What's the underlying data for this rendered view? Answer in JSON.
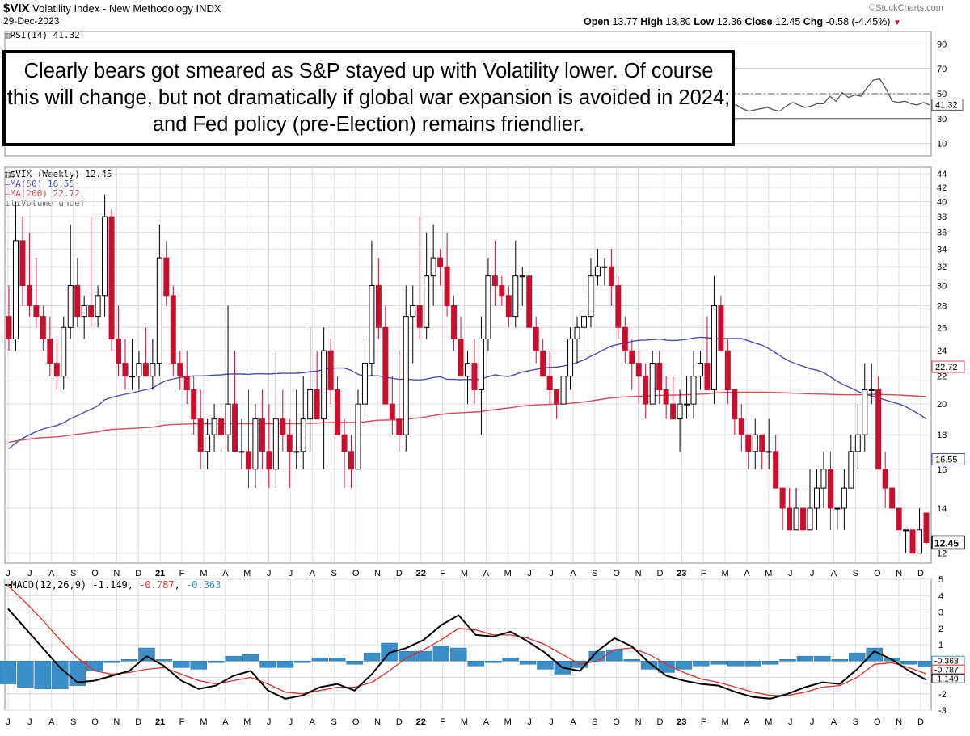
{
  "header": {
    "symbol": "$VIX",
    "name": "Volatility Index - New Methodology",
    "exchange": "INDX",
    "date": "29-Dec-2023",
    "ohlc": {
      "open_label": "Open",
      "open": "13.77",
      "high_label": "High",
      "high": "13.80",
      "low_label": "Low",
      "low": "12.36",
      "close_label": "Close",
      "close": "12.45",
      "chg_label": "Chg",
      "chg": "-0.58 (-4.45%)"
    },
    "chg_arrow": "▼",
    "watermark": "©StockCharts.com"
  },
  "callout": {
    "text": "Clearly bears got smeared as S&P stayed up with Volatility lower. Of course this will change, but not dramatically if global war expansion is avoided in 2024; and Fed policy (pre-Election) remains friendlier."
  },
  "legends": {
    "rsi": "RSI(14) 41.32",
    "price": "$VIX (Weekly) 12.45",
    "ma50": "MA(50) 16.55",
    "ma200": "MA(200) 22.72",
    "volume": "Volume undef",
    "macd_prefix": "MACD(12,26,9)",
    "macd_val": "-1.149",
    "signal_val": "-0.787",
    "hist_val": "-0.363"
  },
  "colors": {
    "up": "#000000",
    "down": "#c8102e",
    "ma50": "#4a4fb0",
    "ma200": "#d84a55",
    "macd": "#000000",
    "signal": "#e0302a",
    "hist": "#3a8fc8",
    "grid": "#dcdcdc",
    "chg": "#c8102e"
  },
  "chart_data": [
    {
      "type": "line",
      "panel": "RSI(14)",
      "ylim": [
        0,
        100
      ],
      "yticks": [
        10,
        30,
        50,
        70,
        90
      ],
      "reference_lines": [
        30,
        50,
        70
      ],
      "last_label": "41.32",
      "series": [
        {
          "name": "RSI(14)",
          "values": [
            45,
            44,
            42,
            40,
            41,
            38,
            36,
            37,
            38,
            39,
            37,
            36,
            40,
            43,
            41,
            39,
            40,
            42,
            42,
            48,
            44,
            51,
            47,
            49,
            48,
            55,
            61,
            62,
            54,
            44,
            43,
            44,
            42,
            41,
            43,
            41
          ]
        }
      ]
    },
    {
      "type": "candlestick",
      "panel": "$VIX (Weekly)",
      "y_scale": "log",
      "ylim": [
        11.6,
        45
      ],
      "yticks": [
        12,
        14,
        16,
        18,
        20,
        22,
        24,
        26,
        28,
        30,
        32,
        34,
        36,
        38,
        40,
        42,
        44
      ],
      "x_tick_labels": [
        "J",
        "J",
        "A",
        "S",
        "O",
        "N",
        "D",
        "21",
        "F",
        "M",
        "A",
        "M",
        "J",
        "J",
        "A",
        "S",
        "O",
        "N",
        "D",
        "22",
        "F",
        "M",
        "A",
        "M",
        "J",
        "J",
        "A",
        "S",
        "O",
        "N",
        "D",
        "23",
        "F",
        "M",
        "A",
        "M",
        "J",
        "J",
        "A",
        "S",
        "O",
        "N",
        "D"
      ],
      "series": [
        {
          "name": "MA(50)",
          "last": 16.55
        },
        {
          "name": "MA(200)",
          "last": 22.72
        }
      ],
      "candles": [
        {
          "o": 27,
          "h": 30,
          "l": 24,
          "c": 25
        },
        {
          "o": 25,
          "h": 40,
          "l": 24,
          "c": 35
        },
        {
          "o": 35,
          "h": 38,
          "l": 28,
          "c": 30
        },
        {
          "o": 30,
          "h": 36,
          "l": 27,
          "c": 28
        },
        {
          "o": 28,
          "h": 33,
          "l": 26,
          "c": 27
        },
        {
          "o": 27,
          "h": 28,
          "l": 24,
          "c": 25
        },
        {
          "o": 25,
          "h": 27,
          "l": 22,
          "c": 23
        },
        {
          "o": 23,
          "h": 25,
          "l": 21,
          "c": 22
        },
        {
          "o": 22,
          "h": 27,
          "l": 21,
          "c": 26
        },
        {
          "o": 26,
          "h": 37,
          "l": 25,
          "c": 30
        },
        {
          "o": 30,
          "h": 33,
          "l": 26,
          "c": 27
        },
        {
          "o": 27,
          "h": 29,
          "l": 25,
          "c": 28
        },
        {
          "o": 28,
          "h": 38,
          "l": 26,
          "c": 27
        },
        {
          "o": 27,
          "h": 30,
          "l": 26,
          "c": 29
        },
        {
          "o": 29,
          "h": 41,
          "l": 27,
          "c": 38
        },
        {
          "o": 38,
          "h": 39,
          "l": 24,
          "c": 25
        },
        {
          "o": 25,
          "h": 28,
          "l": 22,
          "c": 23
        },
        {
          "o": 23,
          "h": 25,
          "l": 21,
          "c": 22
        },
        {
          "o": 22,
          "h": 25,
          "l": 21,
          "c": 22
        },
        {
          "o": 22,
          "h": 24,
          "l": 21,
          "c": 23
        },
        {
          "o": 23,
          "h": 26,
          "l": 22,
          "c": 22
        },
        {
          "o": 22,
          "h": 25,
          "l": 21,
          "c": 23
        },
        {
          "o": 23,
          "h": 37,
          "l": 22,
          "c": 33
        },
        {
          "o": 33,
          "h": 35,
          "l": 28,
          "c": 29
        },
        {
          "o": 29,
          "h": 30,
          "l": 22,
          "c": 23
        },
        {
          "o": 23,
          "h": 24,
          "l": 21,
          "c": 22
        },
        {
          "o": 22,
          "h": 24,
          "l": 20,
          "c": 21
        },
        {
          "o": 21,
          "h": 22,
          "l": 18,
          "c": 19
        },
        {
          "o": 19,
          "h": 21,
          "l": 16,
          "c": 17
        },
        {
          "o": 17,
          "h": 19,
          "l": 16,
          "c": 18
        },
        {
          "o": 18,
          "h": 20,
          "l": 17,
          "c": 19
        },
        {
          "o": 19,
          "h": 22,
          "l": 17,
          "c": 18
        },
        {
          "o": 18,
          "h": 28,
          "l": 17,
          "c": 20
        },
        {
          "o": 20,
          "h": 24,
          "l": 17,
          "c": 17
        },
        {
          "o": 17,
          "h": 19,
          "l": 16,
          "c": 17
        },
        {
          "o": 17,
          "h": 21,
          "l": 15,
          "c": 16
        },
        {
          "o": 16,
          "h": 20,
          "l": 15,
          "c": 19
        },
        {
          "o": 19,
          "h": 21,
          "l": 16,
          "c": 17
        },
        {
          "o": 17,
          "h": 20,
          "l": 15,
          "c": 16
        },
        {
          "o": 16,
          "h": 24,
          "l": 15,
          "c": 19
        },
        {
          "o": 19,
          "h": 21,
          "l": 17,
          "c": 18
        },
        {
          "o": 18,
          "h": 19,
          "l": 15,
          "c": 17
        },
        {
          "o": 17,
          "h": 21,
          "l": 16,
          "c": 17
        },
        {
          "o": 17,
          "h": 22,
          "l": 16,
          "c": 19
        },
        {
          "o": 19,
          "h": 26,
          "l": 17,
          "c": 21
        },
        {
          "o": 21,
          "h": 24,
          "l": 19,
          "c": 19
        },
        {
          "o": 19,
          "h": 26,
          "l": 16,
          "c": 24
        },
        {
          "o": 24,
          "h": 25,
          "l": 20,
          "c": 21
        },
        {
          "o": 21,
          "h": 22,
          "l": 18,
          "c": 18
        },
        {
          "o": 18,
          "h": 19,
          "l": 15,
          "c": 17
        },
        {
          "o": 17,
          "h": 18,
          "l": 15,
          "c": 16
        },
        {
          "o": 16,
          "h": 21,
          "l": 16,
          "c": 20
        },
        {
          "o": 20,
          "h": 25,
          "l": 19,
          "c": 23
        },
        {
          "o": 23,
          "h": 35,
          "l": 22,
          "c": 30
        },
        {
          "o": 30,
          "h": 33,
          "l": 25,
          "c": 26
        },
        {
          "o": 26,
          "h": 28,
          "l": 20,
          "c": 20
        },
        {
          "o": 20,
          "h": 22,
          "l": 18,
          "c": 19
        },
        {
          "o": 19,
          "h": 24,
          "l": 17,
          "c": 18
        },
        {
          "o": 18,
          "h": 30,
          "l": 17,
          "c": 27
        },
        {
          "o": 27,
          "h": 30,
          "l": 23,
          "c": 28
        },
        {
          "o": 28,
          "h": 38,
          "l": 25,
          "c": 26
        },
        {
          "o": 26,
          "h": 36,
          "l": 25,
          "c": 31
        },
        {
          "o": 31,
          "h": 37,
          "l": 28,
          "c": 33
        },
        {
          "o": 33,
          "h": 34,
          "l": 30,
          "c": 32
        },
        {
          "o": 32,
          "h": 36,
          "l": 27,
          "c": 28
        },
        {
          "o": 28,
          "h": 29,
          "l": 24,
          "c": 25
        },
        {
          "o": 25,
          "h": 27,
          "l": 22,
          "c": 22
        },
        {
          "o": 22,
          "h": 24,
          "l": 20,
          "c": 23
        },
        {
          "o": 23,
          "h": 25,
          "l": 20,
          "c": 21
        },
        {
          "o": 21,
          "h": 27,
          "l": 18,
          "c": 25
        },
        {
          "o": 25,
          "h": 33,
          "l": 24,
          "c": 31
        },
        {
          "o": 31,
          "h": 35,
          "l": 28,
          "c": 30
        },
        {
          "o": 30,
          "h": 31,
          "l": 28,
          "c": 29
        },
        {
          "o": 29,
          "h": 30,
          "l": 26,
          "c": 27
        },
        {
          "o": 27,
          "h": 35,
          "l": 26,
          "c": 31
        },
        {
          "o": 31,
          "h": 32,
          "l": 28,
          "c": 31
        },
        {
          "o": 31,
          "h": 31,
          "l": 26,
          "c": 26
        },
        {
          "o": 26,
          "h": 27,
          "l": 23,
          "c": 24
        },
        {
          "o": 24,
          "h": 25,
          "l": 22,
          "c": 22
        },
        {
          "o": 22,
          "h": 24,
          "l": 20,
          "c": 21
        },
        {
          "o": 21,
          "h": 21,
          "l": 19,
          "c": 20
        },
        {
          "o": 20,
          "h": 22,
          "l": 20,
          "c": 22
        },
        {
          "o": 22,
          "h": 26,
          "l": 21,
          "c": 25
        },
        {
          "o": 25,
          "h": 27,
          "l": 23,
          "c": 26
        },
        {
          "o": 26,
          "h": 29,
          "l": 24,
          "c": 27
        },
        {
          "o": 27,
          "h": 33,
          "l": 26,
          "c": 31
        },
        {
          "o": 31,
          "h": 34,
          "l": 30,
          "c": 32
        },
        {
          "o": 32,
          "h": 33,
          "l": 30,
          "c": 32
        },
        {
          "o": 32,
          "h": 34,
          "l": 28,
          "c": 30
        },
        {
          "o": 30,
          "h": 31,
          "l": 25,
          "c": 26
        },
        {
          "o": 26,
          "h": 27,
          "l": 23,
          "c": 24
        },
        {
          "o": 24,
          "h": 25,
          "l": 21,
          "c": 23
        },
        {
          "o": 23,
          "h": 24,
          "l": 20,
          "c": 22
        },
        {
          "o": 22,
          "h": 23,
          "l": 19,
          "c": 20
        },
        {
          "o": 20,
          "h": 24,
          "l": 20,
          "c": 23
        },
        {
          "o": 23,
          "h": 24,
          "l": 20,
          "c": 21
        },
        {
          "o": 21,
          "h": 22,
          "l": 19,
          "c": 20
        },
        {
          "o": 20,
          "h": 22,
          "l": 19,
          "c": 19
        },
        {
          "o": 19,
          "h": 21,
          "l": 17,
          "c": 20
        },
        {
          "o": 20,
          "h": 22,
          "l": 19,
          "c": 20
        },
        {
          "o": 20,
          "h": 24,
          "l": 19,
          "c": 22
        },
        {
          "o": 22,
          "h": 24,
          "l": 21,
          "c": 23
        },
        {
          "o": 23,
          "h": 27,
          "l": 21,
          "c": 21
        },
        {
          "o": 21,
          "h": 31,
          "l": 20,
          "c": 28
        },
        {
          "o": 28,
          "h": 29,
          "l": 24,
          "c": 24
        },
        {
          "o": 24,
          "h": 25,
          "l": 20,
          "c": 21
        },
        {
          "o": 21,
          "h": 21,
          "l": 18,
          "c": 19
        },
        {
          "o": 19,
          "h": 20,
          "l": 17,
          "c": 18
        },
        {
          "o": 18,
          "h": 18,
          "l": 16,
          "c": 17
        },
        {
          "o": 17,
          "h": 19,
          "l": 16,
          "c": 18
        },
        {
          "o": 18,
          "h": 18,
          "l": 16,
          "c": 17
        },
        {
          "o": 17,
          "h": 19,
          "l": 16,
          "c": 17
        },
        {
          "o": 17,
          "h": 18,
          "l": 15,
          "c": 15
        },
        {
          "o": 15,
          "h": 15,
          "l": 13,
          "c": 14
        },
        {
          "o": 14,
          "h": 15,
          "l": 13,
          "c": 13
        },
        {
          "o": 13,
          "h": 15,
          "l": 13,
          "c": 14
        },
        {
          "o": 14,
          "h": 15,
          "l": 13,
          "c": 13
        },
        {
          "o": 13,
          "h": 16,
          "l": 13,
          "c": 14
        },
        {
          "o": 14,
          "h": 16,
          "l": 13,
          "c": 15
        },
        {
          "o": 15,
          "h": 17,
          "l": 14,
          "c": 16
        },
        {
          "o": 16,
          "h": 17,
          "l": 13,
          "c": 14
        },
        {
          "o": 14,
          "h": 14,
          "l": 13,
          "c": 14
        },
        {
          "o": 14,
          "h": 16,
          "l": 13,
          "c": 15
        },
        {
          "o": 15,
          "h": 18,
          "l": 15,
          "c": 17
        },
        {
          "o": 17,
          "h": 20,
          "l": 16,
          "c": 18
        },
        {
          "o": 18,
          "h": 23,
          "l": 17,
          "c": 21
        },
        {
          "o": 21,
          "h": 23,
          "l": 20,
          "c": 21
        },
        {
          "o": 21,
          "h": 22,
          "l": 16,
          "c": 16
        },
        {
          "o": 16,
          "h": 17,
          "l": 14,
          "c": 15
        },
        {
          "o": 15,
          "h": 15,
          "l": 14,
          "c": 14
        },
        {
          "o": 14,
          "h": 14,
          "l": 13,
          "c": 13
        },
        {
          "o": 13,
          "h": 13,
          "l": 12,
          "c": 13
        },
        {
          "o": 13,
          "h": 13,
          "l": 12,
          "c": 12
        },
        {
          "o": 12,
          "h": 14,
          "l": 12,
          "c": 13
        },
        {
          "o": 13.77,
          "h": 13.8,
          "l": 12.36,
          "c": 12.45
        }
      ]
    },
    {
      "type": "bar",
      "panel": "MACD(12,26,9)",
      "ylim": [
        -3,
        5
      ],
      "yticks": [
        -3,
        -2,
        -1,
        0,
        1,
        2,
        3,
        4,
        5
      ],
      "series": [
        {
          "name": "MACD",
          "last": -1.149,
          "values": [
            3.2,
            2.0,
            0.8,
            -0.4,
            -1.3,
            -1.2,
            -0.9,
            -0.6,
            0.3,
            -0.3,
            -1.2,
            -1.7,
            -1.5,
            -0.9,
            -0.6,
            -1.8,
            -2.3,
            -2.1,
            -1.6,
            -1.4,
            -1.8,
            -0.8,
            0.5,
            0.8,
            1.3,
            2.2,
            2.8,
            1.6,
            1.5,
            1.8,
            1.2,
            0.5,
            -0.4,
            -0.6,
            0.6,
            1.4,
            0.9,
            -0.1,
            -0.9,
            -1.2,
            -1.4,
            -1.5,
            -1.9,
            -2.2,
            -2.3,
            -2.0,
            -1.6,
            -1.3,
            -1.4,
            -0.5,
            0.6,
            0.1,
            -0.6,
            -1.149
          ]
        },
        {
          "name": "Signal",
          "last": -0.787,
          "values": [
            4.6,
            3.6,
            2.5,
            1.3,
            0.2,
            -0.6,
            -0.8,
            -0.7,
            -0.5,
            -0.4,
            -0.8,
            -1.2,
            -1.4,
            -1.2,
            -1.0,
            -1.4,
            -1.9,
            -2.0,
            -1.8,
            -1.6,
            -1.6,
            -1.3,
            -0.6,
            0.2,
            0.7,
            1.3,
            2.0,
            1.9,
            1.6,
            1.6,
            1.4,
            1.0,
            0.4,
            -0.2,
            0.0,
            0.7,
            0.8,
            0.4,
            -0.2,
            -0.7,
            -1.1,
            -1.3,
            -1.6,
            -1.9,
            -2.1,
            -2.1,
            -1.9,
            -1.6,
            -1.5,
            -1.0,
            -0.2,
            -0.1,
            -0.4,
            -0.787
          ]
        },
        {
          "name": "Histogram",
          "last": -0.363,
          "values": [
            -1.4,
            -1.6,
            -1.7,
            -1.7,
            -1.5,
            -0.6,
            -0.1,
            0.1,
            0.8,
            0.1,
            -0.4,
            -0.5,
            -0.1,
            0.3,
            0.4,
            -0.4,
            -0.4,
            -0.1,
            0.2,
            0.2,
            -0.2,
            0.5,
            1.1,
            0.6,
            0.6,
            0.9,
            0.8,
            -0.3,
            -0.1,
            0.2,
            -0.2,
            -0.5,
            -0.8,
            -0.4,
            0.6,
            0.7,
            0.1,
            -0.5,
            -0.7,
            -0.5,
            -0.3,
            -0.2,
            -0.3,
            -0.3,
            -0.2,
            0.1,
            0.3,
            0.3,
            0.1,
            0.5,
            0.8,
            0.2,
            -0.2,
            -0.363
          ]
        }
      ]
    }
  ]
}
